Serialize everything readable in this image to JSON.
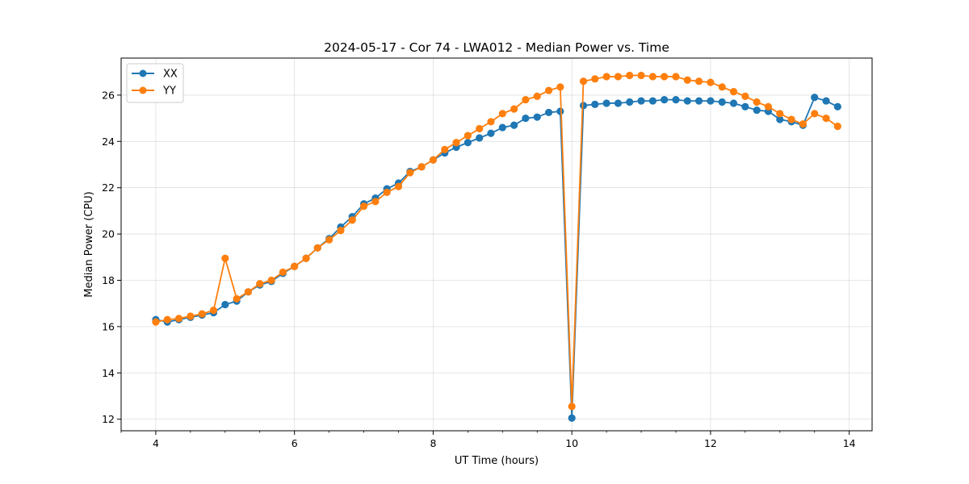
{
  "chart_data": {
    "type": "line",
    "title": "2024-05-17 - Cor 74 - LWA012 - Median Power vs. Time",
    "xlabel": "UT Time (hours)",
    "ylabel": "Median Power (CPU)",
    "xlim": [
      3.5,
      14.33
    ],
    "ylim": [
      11.5,
      27.6
    ],
    "xticks": [
      4,
      6,
      8,
      10,
      12,
      14
    ],
    "yticks": [
      12,
      14,
      16,
      18,
      20,
      22,
      24,
      26
    ],
    "grid": true,
    "legend_position": "top-left",
    "x": [
      4.0,
      4.167,
      4.333,
      4.5,
      4.667,
      4.833,
      5.0,
      5.167,
      5.333,
      5.5,
      5.667,
      5.833,
      6.0,
      6.167,
      6.333,
      6.5,
      6.667,
      6.833,
      7.0,
      7.167,
      7.333,
      7.5,
      7.667,
      7.833,
      8.0,
      8.167,
      8.333,
      8.5,
      8.667,
      8.833,
      9.0,
      9.167,
      9.333,
      9.5,
      9.667,
      9.833,
      10.0,
      10.167,
      10.333,
      10.5,
      10.667,
      10.833,
      11.0,
      11.167,
      11.333,
      11.5,
      11.667,
      11.833,
      12.0,
      12.167,
      12.333,
      12.5,
      12.667,
      12.833,
      13.0,
      13.167,
      13.333,
      13.5,
      13.667,
      13.833
    ],
    "series": [
      {
        "name": "XX",
        "color": "#1f77b4",
        "values": [
          16.3,
          16.2,
          16.3,
          16.4,
          16.5,
          16.6,
          16.95,
          17.1,
          17.5,
          17.8,
          17.95,
          18.3,
          18.6,
          18.95,
          19.4,
          19.8,
          20.3,
          20.75,
          21.3,
          21.55,
          21.95,
          22.2,
          22.7,
          22.9,
          23.2,
          23.5,
          23.75,
          23.95,
          24.15,
          24.35,
          24.6,
          24.7,
          25.0,
          25.05,
          25.25,
          25.3,
          12.05,
          25.55,
          25.6,
          25.65,
          25.65,
          25.7,
          25.75,
          25.75,
          25.8,
          25.8,
          25.75,
          25.75,
          25.75,
          25.7,
          25.65,
          25.5,
          25.35,
          25.3,
          24.95,
          24.85,
          24.7,
          25.9,
          25.75,
          25.5
        ]
      },
      {
        "name": "YY",
        "color": "#ff7f0e",
        "values": [
          16.2,
          16.3,
          16.35,
          16.45,
          16.55,
          16.7,
          18.95,
          17.2,
          17.5,
          17.85,
          18.0,
          18.35,
          18.6,
          18.95,
          19.4,
          19.75,
          20.15,
          20.6,
          21.2,
          21.4,
          21.8,
          22.05,
          22.65,
          22.9,
          23.2,
          23.65,
          23.95,
          24.25,
          24.55,
          24.85,
          25.2,
          25.4,
          25.8,
          25.95,
          26.2,
          26.35,
          12.55,
          26.6,
          26.7,
          26.8,
          26.8,
          26.85,
          26.85,
          26.8,
          26.8,
          26.8,
          26.65,
          26.6,
          26.55,
          26.35,
          26.15,
          25.95,
          25.7,
          25.5,
          25.2,
          24.95,
          24.75,
          25.2,
          25.0,
          24.65
        ]
      }
    ]
  }
}
